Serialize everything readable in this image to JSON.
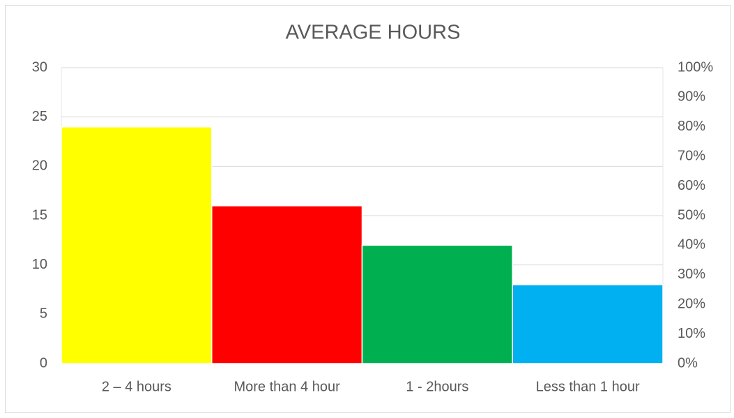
{
  "chart_data": {
    "type": "bar",
    "title": "AVERAGE HOURS",
    "categories": [
      "2 – 4 hours",
      "More than 4 hour",
      "1 - 2hours",
      "Less than 1 hour"
    ],
    "values": [
      24,
      16,
      12,
      8
    ],
    "colors": [
      "#ffff00",
      "#ff0000",
      "#00b050",
      "#00b0f0"
    ],
    "ylim": [
      0,
      30
    ],
    "yticks": [
      0,
      5,
      10,
      15,
      20,
      25,
      30
    ],
    "y2lim": [
      0,
      100
    ],
    "y2ticks": [
      {
        "value": 0,
        "label": "0%"
      },
      {
        "value": 10,
        "label": "10%"
      },
      {
        "value": 20,
        "label": "20%"
      },
      {
        "value": 30,
        "label": "30%"
      },
      {
        "value": 40,
        "label": "40%"
      },
      {
        "value": 50,
        "label": "50%"
      },
      {
        "value": 60,
        "label": "60%"
      },
      {
        "value": 70,
        "label": "70%"
      },
      {
        "value": 80,
        "label": "80%"
      },
      {
        "value": 90,
        "label": "90%"
      },
      {
        "value": 100,
        "label": "100%"
      }
    ],
    "grid": true
  }
}
